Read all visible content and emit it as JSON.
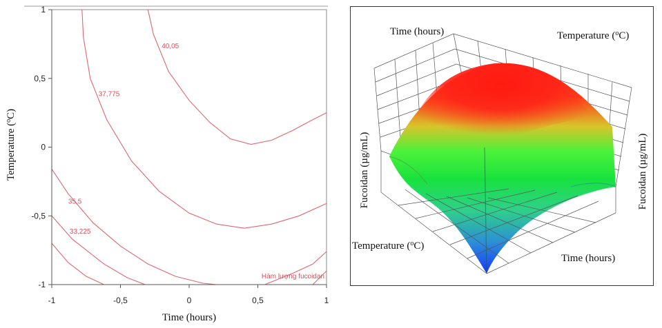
{
  "chart_data": [
    {
      "type": "contour",
      "xlabel": "Time (hours)",
      "ylabel": "Temperature (°C)",
      "ylabel_parts": [
        "Temperature (",
        "o",
        "C)"
      ],
      "xlim": [
        -1,
        1
      ],
      "ylim": [
        -1,
        1
      ],
      "xticks": [
        "-1",
        "-0,5",
        "0",
        "0,5",
        "1"
      ],
      "yticks": [
        "1",
        "0,5",
        "0",
        "-0,5",
        "-1"
      ],
      "line_color": "#e06670",
      "response_label": "Hàm lượng fucoidan",
      "levels": [
        {
          "label": "40,05",
          "points": [
            [
              -0.3,
              1
            ],
            [
              -0.26,
              0.82
            ],
            [
              -0.15,
              0.55
            ],
            [
              0,
              0.34
            ],
            [
              0.15,
              0.18
            ],
            [
              0.3,
              0.06
            ],
            [
              0.45,
              0.02
            ],
            [
              0.6,
              0.05
            ],
            [
              0.75,
              0.12
            ],
            [
              0.9,
              0.2
            ],
            [
              1,
              0.25
            ]
          ],
          "label_at": [
            -0.2,
            0.72
          ]
        },
        {
          "label": "37,775",
          "points": [
            [
              -0.78,
              1
            ],
            [
              -0.77,
              0.8
            ],
            [
              -0.72,
              0.5
            ],
            [
              -0.6,
              0.2
            ],
            [
              -0.42,
              -0.1
            ],
            [
              -0.22,
              -0.32
            ],
            [
              0,
              -0.48
            ],
            [
              0.2,
              -0.56
            ],
            [
              0.4,
              -0.59
            ],
            [
              0.6,
              -0.56
            ],
            [
              0.8,
              -0.5
            ],
            [
              1,
              -0.41
            ]
          ],
          "label_at": [
            -0.66,
            0.37
          ]
        },
        {
          "label": "35,5",
          "points": [
            [
              -1,
              -0.16
            ],
            [
              -0.88,
              -0.34
            ],
            [
              -0.7,
              -0.55
            ],
            [
              -0.5,
              -0.72
            ],
            [
              -0.3,
              -0.85
            ],
            [
              -0.1,
              -0.94
            ],
            [
              0.1,
              -0.99
            ],
            [
              0.2,
              -1
            ]
          ],
          "label_at": [
            -0.88,
            -0.41
          ]
        },
        {
          "label": "33,225",
          "points": [
            [
              -1,
              -0.5
            ],
            [
              -0.85,
              -0.67
            ],
            [
              -0.62,
              -0.85
            ],
            [
              -0.45,
              -0.95
            ],
            [
              -0.32,
              -1
            ]
          ],
          "label_at": [
            -0.87,
            -0.63
          ]
        },
        {
          "label": "",
          "points": [
            [
              -1,
              -0.7
            ],
            [
              -0.88,
              -0.84
            ],
            [
              -0.75,
              -0.94
            ],
            [
              -0.62,
              -1
            ]
          ],
          "label_at": null
        },
        {
          "label": "",
          "points": [
            [
              0.55,
              -1
            ],
            [
              0.75,
              -0.92
            ],
            [
              0.9,
              -0.85
            ],
            [
              1,
              -0.76
            ]
          ],
          "label_at": null
        },
        {
          "label": "",
          "points": [
            [
              0.9,
              -1
            ],
            [
              0.95,
              -0.95
            ],
            [
              1,
              -0.9
            ]
          ],
          "label_at": null
        }
      ]
    },
    {
      "type": "surface3d",
      "zlabel": "Fucoidan (µg/mL)",
      "axis_labels": {
        "top_left": "Time (hours)",
        "top_right": "Temperature (°C)",
        "top_right_parts": [
          "Temperature (",
          "o",
          "C)"
        ],
        "left_vertical": "Fucoidan (µg/mL)",
        "right_vertical": "Fucoidan (µg/mL)",
        "bottom_left": "Temperature (°C)",
        "bottom_left_parts": [
          "Temperature (",
          "o",
          "C)"
        ],
        "bottom_right": "Time (hours)"
      },
      "colormap": [
        "#1f3fff",
        "#2aa6c7",
        "#22e04a",
        "#43f23a",
        "#c8c828",
        "#ff2a1a"
      ],
      "grid": true
    }
  ]
}
